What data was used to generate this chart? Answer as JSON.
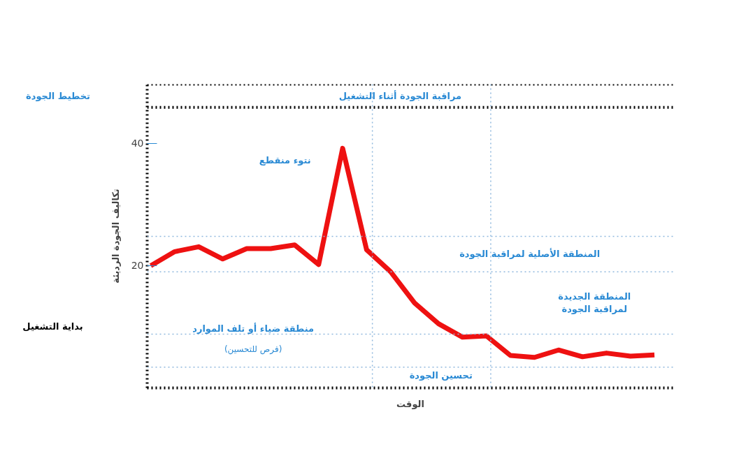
{
  "chart_data": {
    "type": "line",
    "ylabel": "تكاليف الجودة الرديئة",
    "xlabel": "الوقت",
    "categories": [
      null,
      null,
      null,
      null,
      null,
      null,
      null,
      null,
      null,
      null,
      null,
      null,
      null,
      null,
      null,
      null,
      null,
      null,
      null,
      null,
      null,
      null
    ],
    "series": [
      {
        "color": "#ee1111",
        "values": [
          20.0,
          22.3,
          23.1,
          21.1,
          22.8,
          22.8,
          23.4,
          20.2,
          39.2,
          22.6,
          19.0,
          13.9,
          10.5,
          8.3,
          8.5,
          5.3,
          5.0,
          6.2,
          5.1,
          5.7,
          5.2,
          5.4
        ]
      }
    ],
    "ylim": [
      0,
      49.7
    ],
    "yticks": [
      20,
      40
    ],
    "grid": false,
    "marker": "none",
    "line_style": "solid",
    "ref_lines": [
      {
        "axis": "y",
        "value": 45.9,
        "label": null,
        "color": "#000000",
        "line_style": "dotted"
      },
      {
        "axis": "y",
        "value": 49.7,
        "label": null,
        "color": "#000000",
        "line_style": "dotted"
      },
      {
        "axis": "y",
        "value": 24.8,
        "label": null,
        "color": "#8fb8dd",
        "line_style": "dotted"
      },
      {
        "axis": "y",
        "value": 19.0,
        "label": "المنطقة الأصلية لمراقبة الجودة",
        "color": "#8fb8dd",
        "line_style": "dotted"
      },
      {
        "axis": "y",
        "value": 8.8,
        "label": "المنطقة الجديدة\nلمراقبة الجودة",
        "color": "#8fb8dd",
        "line_style": "dotted"
      },
      {
        "axis": "y",
        "value": 3.4,
        "label": null,
        "color": "#8fb8dd",
        "line_style": "dotted"
      }
    ],
    "annotations": [
      "تخطيط الجودة",
      "مراقبة الجودة أثناء التشغيل",
      "نتوء منقطع",
      "بداية التشغيل",
      "منطقة ضياء أو تلف الموارد",
      "(فرص للتحسين)",
      "تحسين الجودة"
    ]
  }
}
